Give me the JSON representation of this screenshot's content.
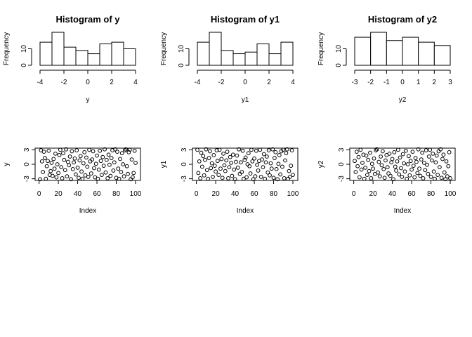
{
  "chart_data": [
    {
      "type": "bar",
      "subtype": "histogram",
      "title": "Histogram of y",
      "xlabel": "y",
      "ylabel": "Frequency",
      "bins": [
        [
          -4,
          -3
        ],
        [
          -3,
          -2
        ],
        [
          -2,
          -1
        ],
        [
          -1,
          0
        ],
        [
          0,
          1
        ],
        [
          1,
          2
        ],
        [
          2,
          3
        ],
        [
          3,
          4
        ]
      ],
      "values": [
        14,
        20,
        11,
        9,
        7,
        13,
        14,
        10
      ],
      "xlim": [
        -4,
        4
      ],
      "xticks": [
        -4,
        -2,
        0,
        2,
        4
      ],
      "yticks": [
        0,
        10
      ],
      "ylim": [
        0,
        20
      ]
    },
    {
      "type": "bar",
      "subtype": "histogram",
      "title": "Histogram of y1",
      "xlabel": "y1",
      "ylabel": "Frequency",
      "bins": [
        [
          -4,
          -3
        ],
        [
          -3,
          -2
        ],
        [
          -2,
          -1
        ],
        [
          -1,
          0
        ],
        [
          0,
          1
        ],
        [
          1,
          2
        ],
        [
          2,
          3
        ],
        [
          3,
          4
        ]
      ],
      "values": [
        14,
        20,
        9,
        7,
        8,
        13,
        7,
        14
      ],
      "xlim": [
        -4,
        4
      ],
      "xticks": [
        -4,
        -2,
        0,
        2,
        4
      ],
      "yticks": [
        0,
        10
      ],
      "ylim": [
        0,
        20
      ]
    },
    {
      "type": "bar",
      "subtype": "histogram",
      "title": "Histogram of y2",
      "xlabel": "y2",
      "ylabel": "Frequency",
      "bins": [
        [
          -3,
          -2
        ],
        [
          -2,
          -1
        ],
        [
          -1,
          0
        ],
        [
          0,
          1
        ],
        [
          1,
          2
        ],
        [
          2,
          3
        ]
      ],
      "values": [
        17,
        20,
        15,
        17,
        14,
        12
      ],
      "xlim": [
        -3,
        3
      ],
      "xticks": [
        -3,
        -2,
        -1,
        0,
        1,
        2,
        3
      ],
      "yticks": [
        0,
        10
      ],
      "ylim": [
        0,
        20
      ]
    },
    {
      "type": "scatter",
      "xlabel": "Index",
      "ylabel": "y",
      "xlim": [
        1,
        100
      ],
      "ylim": [
        -3.2,
        3.2
      ],
      "xticks": [
        0,
        20,
        40,
        60,
        80,
        100
      ],
      "yticks": [
        -3,
        0,
        3
      ],
      "x": [
        1,
        2,
        3,
        4,
        5,
        6,
        7,
        8,
        9,
        10,
        11,
        12,
        13,
        14,
        15,
        16,
        17,
        18,
        19,
        20,
        21,
        22,
        23,
        24,
        25,
        26,
        27,
        28,
        29,
        30,
        31,
        32,
        33,
        34,
        35,
        36,
        37,
        38,
        39,
        40,
        41,
        42,
        43,
        44,
        45,
        46,
        47,
        48,
        49,
        50,
        51,
        52,
        53,
        54,
        55,
        56,
        57,
        58,
        59,
        60,
        61,
        62,
        63,
        64,
        65,
        66,
        67,
        68,
        69,
        70,
        71,
        72,
        73,
        74,
        75,
        76,
        77,
        78,
        79,
        80,
        81,
        82,
        83,
        84,
        85,
        86,
        87,
        88,
        89,
        90,
        91,
        92,
        93,
        94,
        95,
        96,
        97,
        98,
        99,
        100
      ],
      "y": [
        -3.1,
        2.9,
        0.6,
        -1.6,
        2.6,
        1.3,
        -3.0,
        -0.4,
        0.7,
        2.8,
        -2.2,
        -1.4,
        0.3,
        -2.4,
        1.1,
        -0.9,
        2.2,
        -2.7,
        0.0,
        -1.8,
        1.9,
        3.0,
        -0.6,
        -2.9,
        2.3,
        0.9,
        -1.2,
        3.1,
        -2.5,
        0.5,
        -0.2,
        1.6,
        -3.1,
        2.7,
        -1.0,
        0.4,
        1.2,
        -2.1,
        2.9,
        -0.7,
        -2.8,
        0.8,
        1.7,
        -1.5,
        -3.0,
        0.2,
        2.5,
        -2.3,
        1.4,
        -0.5,
        -2.6,
        3.0,
        0.6,
        -1.9,
        1.0,
        2.7,
        -0.8,
        -2.7,
        0.1,
        1.8,
        -3.0,
        -1.1,
        2.8,
        0.7,
        -2.2,
        1.5,
        -0.3,
        3.1,
        -1.7,
        0.9,
        -2.9,
        2.0,
        -0.1,
        -2.4,
        1.3,
        2.9,
        -1.3,
        0.4,
        3.1,
        -2.8,
        2.6,
        -0.9,
        -3.0,
        1.1,
        -1.6,
        2.3,
        0.0,
        -2.5,
        2.9,
        3.1,
        -0.4,
        -2.0,
        2.5,
        3.0,
        -3.1,
        1.0,
        -2.7,
        -1.8,
        2.8,
        0.3
      ],
      "marker": "open-circle"
    },
    {
      "type": "scatter",
      "xlabel": "Index",
      "ylabel": "y1",
      "xlim": [
        1,
        100
      ],
      "ylim": [
        -3.2,
        3.2
      ],
      "xticks": [
        0,
        20,
        40,
        60,
        80,
        100
      ],
      "yticks": [
        -3,
        0,
        3
      ],
      "x": [
        1,
        2,
        3,
        4,
        5,
        6,
        7,
        8,
        9,
        10,
        11,
        12,
        13,
        14,
        15,
        16,
        17,
        18,
        19,
        20,
        21,
        22,
        23,
        24,
        25,
        26,
        27,
        28,
        29,
        30,
        31,
        32,
        33,
        34,
        35,
        36,
        37,
        38,
        39,
        40,
        41,
        42,
        43,
        44,
        45,
        46,
        47,
        48,
        49,
        50,
        51,
        52,
        53,
        54,
        55,
        56,
        57,
        58,
        59,
        60,
        61,
        62,
        63,
        64,
        65,
        66,
        67,
        68,
        69,
        70,
        71,
        72,
        73,
        74,
        75,
        76,
        77,
        78,
        79,
        80,
        81,
        82,
        83,
        84,
        85,
        86,
        87,
        88,
        89,
        90,
        91,
        92,
        93,
        94,
        95,
        96,
        97,
        98,
        99,
        100
      ],
      "y": [
        3.0,
        -1.8,
        0.6,
        -2.9,
        2.4,
        -0.5,
        1.7,
        -2.3,
        0.9,
        3.1,
        -1.2,
        -3.0,
        1.3,
        2.7,
        -0.8,
        0.2,
        -2.6,
        1.9,
        -0.3,
        -1.5,
        2.9,
        0.7,
        -2.2,
        3.0,
        -0.9,
        1.1,
        -2.8,
        2.2,
        -0.2,
        -1.4,
        0.8,
        2.6,
        -2.9,
        -0.6,
        1.5,
        0.3,
        -2.4,
        2.0,
        -1.1,
        -3.1,
        0.5,
        1.8,
        -0.7,
        3.1,
        -2.0,
        0.4,
        -1.6,
        2.8,
        -3.0,
        0.9,
        1.4,
        -2.7,
        0.0,
        2.3,
        -0.4,
        -1.9,
        3.0,
        0.6,
        -3.1,
        1.2,
        -2.5,
        2.8,
        -0.1,
        -1.3,
        0.7,
        3.0,
        -2.6,
        1.0,
        -0.6,
        2.1,
        -3.0,
        0.4,
        1.6,
        -1.7,
        2.9,
        -2.3,
        0.2,
        -0.9,
        3.1,
        -2.8,
        1.3,
        2.5,
        -1.0,
        -3.1,
        0.1,
        1.9,
        -2.1,
        2.7,
        -0.5,
        3.0,
        -2.9,
        0.8,
        2.3,
        3.1,
        -3.0,
        -1.4,
        -2.6,
        -0.3,
        2.9,
        -2.2
      ]
    },
    {
      "type": "scatter",
      "xlabel": "Index",
      "ylabel": "y2",
      "xlim": [
        1,
        100
      ],
      "ylim": [
        -3.2,
        3.2
      ],
      "xticks": [
        0,
        20,
        40,
        60,
        80,
        100
      ],
      "yticks": [
        -3,
        0,
        3
      ],
      "x": [
        1,
        2,
        3,
        4,
        5,
        6,
        7,
        8,
        9,
        10,
        11,
        12,
        13,
        14,
        15,
        16,
        17,
        18,
        19,
        20,
        21,
        22,
        23,
        24,
        25,
        26,
        27,
        28,
        29,
        30,
        31,
        32,
        33,
        34,
        35,
        36,
        37,
        38,
        39,
        40,
        41,
        42,
        43,
        44,
        45,
        46,
        47,
        48,
        49,
        50,
        51,
        52,
        53,
        54,
        55,
        56,
        57,
        58,
        59,
        60,
        61,
        62,
        63,
        64,
        65,
        66,
        67,
        68,
        69,
        70,
        71,
        72,
        73,
        74,
        75,
        76,
        77,
        78,
        79,
        80,
        81,
        82,
        83,
        84,
        85,
        86,
        87,
        88,
        89,
        90,
        91,
        92,
        93,
        94,
        95,
        96,
        97,
        98,
        99,
        100
      ],
      "y": [
        0.7,
        -1.6,
        2.6,
        -0.4,
        1.5,
        -2.7,
        3.0,
        -1.1,
        0.3,
        2.0,
        -3.0,
        -0.7,
        1.8,
        -2.2,
        0.9,
        -1.4,
        2.4,
        -2.9,
        0.1,
        -0.9,
        1.2,
        -2.0,
        2.9,
        3.1,
        -1.7,
        0.5,
        -2.5,
        1.6,
        -0.2,
        2.7,
        -1.0,
        -2.8,
        0.8,
        1.9,
        -0.6,
        -1.9,
        2.2,
        -2.4,
        0.4,
        1.1,
        -3.1,
        2.5,
        -0.5,
        -1.3,
        0.6,
        3.0,
        -2.1,
        1.4,
        -0.8,
        -2.6,
        2.1,
        0.2,
        -1.5,
        2.8,
        -3.0,
        0.0,
        1.7,
        -2.3,
        0.7,
        -1.1,
        2.6,
        -0.3,
        -2.7,
        1.3,
        0.5,
        -1.8,
        3.1,
        -0.9,
        -2.4,
        1.0,
        2.4,
        -2.9,
        0.3,
        -1.2,
        2.9,
        -0.1,
        -2.0,
        1.6,
        3.0,
        -2.6,
        0.8,
        2.2,
        -1.5,
        -3.0,
        0.4,
        1.8,
        -2.2,
        2.7,
        -0.6,
        3.1,
        -2.8,
        1.1,
        2.0,
        -1.7,
        -3.1,
        0.6,
        -2.5,
        -0.4,
        2.5,
        -2.9
      ]
    }
  ]
}
